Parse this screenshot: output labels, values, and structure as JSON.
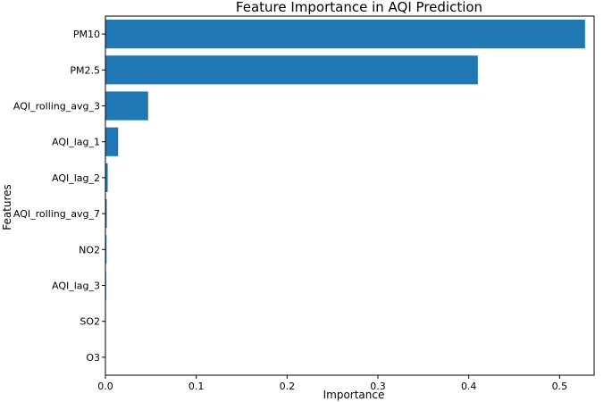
{
  "chart_data": {
    "type": "bar",
    "orientation": "horizontal",
    "title": "Feature Importance in AQI Prediction",
    "xlabel": "Importance",
    "ylabel": "Features",
    "categories": [
      "PM10",
      "PM2.5",
      "AQI_rolling_avg_3",
      "AQI_lag_1",
      "AQI_lag_2",
      "AQI_rolling_avg_7",
      "NO2",
      "AQI_lag_3",
      "SO2",
      "O3"
    ],
    "values": [
      0.528,
      0.41,
      0.047,
      0.014,
      0.0025,
      0.0015,
      0.0012,
      0.0008,
      0.0004,
      0.0002
    ],
    "xlim": [
      0,
      0.538
    ],
    "xticks": [
      0.0,
      0.1,
      0.2,
      0.3,
      0.4,
      0.5
    ],
    "xtick_labels": [
      "0.0",
      "0.1",
      "0.2",
      "0.3",
      "0.4",
      "0.5"
    ],
    "bar_color": "#1f77b4",
    "grid": false,
    "legend": "none"
  }
}
